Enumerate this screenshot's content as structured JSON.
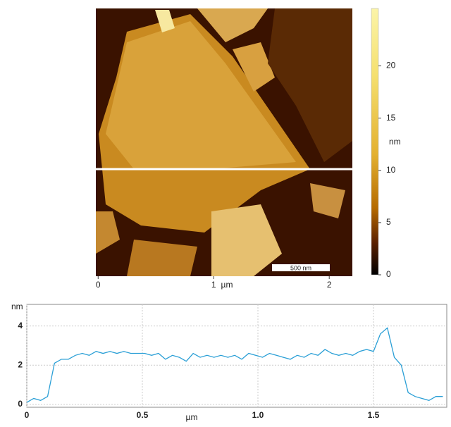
{
  "chart_data": [
    {
      "type": "image",
      "xlim": [
        -0.02,
        2.2
      ],
      "xticks": [
        0,
        1,
        2
      ],
      "xlabel": "µm",
      "scale_bar": "500 nm",
      "colorbar": {
        "label": "nm",
        "lim": [
          0,
          25.5
        ],
        "ticks": [
          0,
          5,
          10,
          15,
          20
        ]
      }
    },
    {
      "type": "line",
      "xlabel": "µm",
      "ylabel": "nm",
      "x": [
        0,
        0.03,
        0.06,
        0.09,
        0.12,
        0.15,
        0.18,
        0.21,
        0.24,
        0.27,
        0.3,
        0.33,
        0.36,
        0.39,
        0.42,
        0.45,
        0.48,
        0.51,
        0.54,
        0.57,
        0.6,
        0.63,
        0.66,
        0.69,
        0.72,
        0.75,
        0.78,
        0.81,
        0.84,
        0.87,
        0.9,
        0.93,
        0.96,
        0.99,
        1.02,
        1.05,
        1.08,
        1.11,
        1.14,
        1.17,
        1.2,
        1.23,
        1.26,
        1.29,
        1.32,
        1.35,
        1.38,
        1.41,
        1.44,
        1.47,
        1.5,
        1.53,
        1.56,
        1.59,
        1.62,
        1.65,
        1.68,
        1.71,
        1.74,
        1.77,
        1.8
      ],
      "series": [
        {
          "color": "#2a9fd6",
          "values": [
            0.1,
            0.3,
            0.2,
            0.4,
            2.1,
            2.3,
            2.3,
            2.5,
            2.6,
            2.5,
            2.7,
            2.6,
            2.7,
            2.6,
            2.7,
            2.6,
            2.6,
            2.6,
            2.5,
            2.6,
            2.3,
            2.5,
            2.4,
            2.2,
            2.6,
            2.4,
            2.5,
            2.4,
            2.5,
            2.4,
            2.5,
            2.3,
            2.6,
            2.5,
            2.4,
            2.6,
            2.5,
            2.4,
            2.3,
            2.5,
            2.4,
            2.6,
            2.5,
            2.8,
            2.6,
            2.5,
            2.6,
            2.5,
            2.7,
            2.8,
            2.7,
            3.6,
            3.9,
            2.4,
            2.0,
            0.6,
            0.4,
            0.3,
            0.2,
            0.4,
            0.4
          ]
        }
      ],
      "xlim": [
        0,
        1.817
      ],
      "xticks": [
        0,
        0.5,
        {
          "value": 1,
          "label": "1.0"
        },
        1.5
      ],
      "ylim": [
        -0.15,
        5.1
      ],
      "yticks": [
        0,
        2,
        4
      ],
      "grid": true
    }
  ]
}
